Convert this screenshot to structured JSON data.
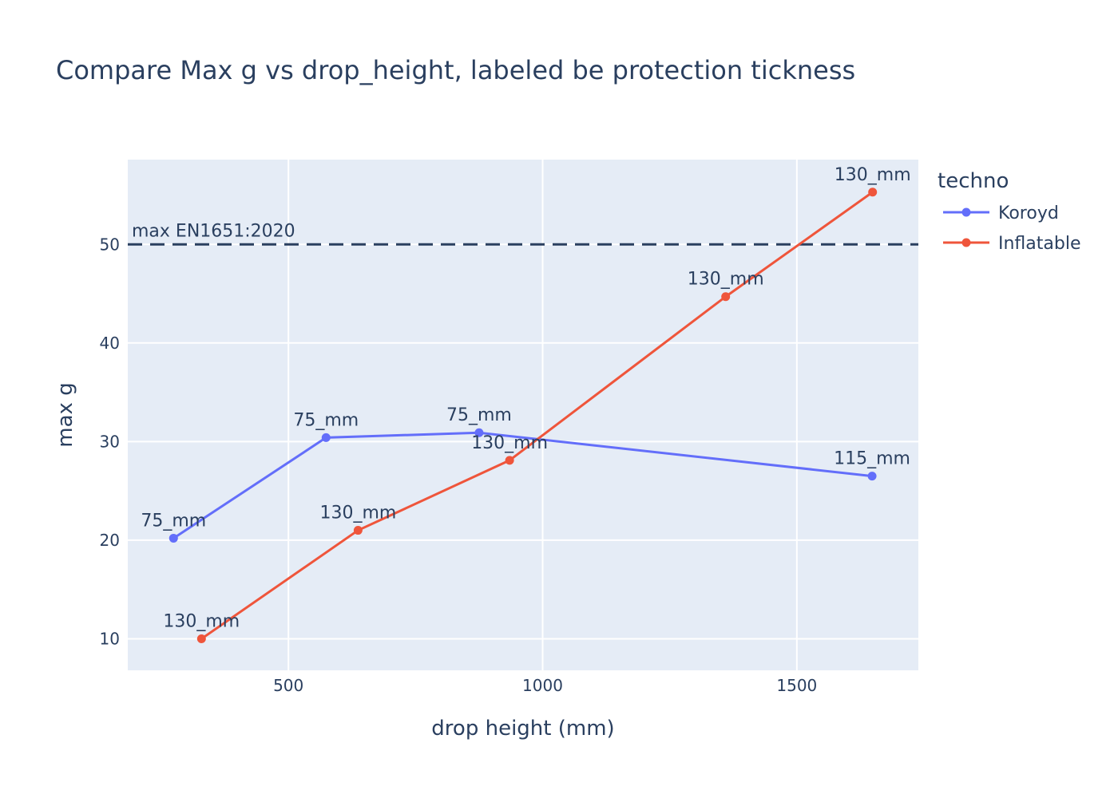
{
  "chart_data": {
    "type": "line",
    "title": "Compare Max g  vs drop_height, labeled be protection tickness",
    "xlabel": "drop height (mm)",
    "ylabel": "max g",
    "xlim": [
      184,
      1739
    ],
    "ylim": [
      6.8,
      58.6
    ],
    "xticks": [
      500,
      1000,
      1500
    ],
    "yticks": [
      10,
      20,
      30,
      40,
      50
    ],
    "grid": true,
    "legend": {
      "title": "techno",
      "position": "right"
    },
    "hline": {
      "y": 50,
      "label": "max EN1651:2020",
      "color": "#2a3f5f",
      "style": "dashed"
    },
    "series": [
      {
        "name": "Koroyd",
        "color": "#636efa",
        "x": [
          274,
          574,
          875,
          1648
        ],
        "y": [
          20.2,
          30.4,
          30.9,
          26.5
        ],
        "labels": [
          "75_mm",
          "75_mm",
          "75_mm",
          "115_mm"
        ]
      },
      {
        "name": "Inflatable",
        "color": "#ef553b",
        "x": [
          329,
          637,
          935,
          1360,
          1649
        ],
        "y": [
          10.0,
          21.0,
          28.1,
          44.7,
          55.3
        ],
        "labels": [
          "130_mm",
          "130_mm",
          "130_mm",
          "130_mm",
          "130_mm"
        ]
      }
    ]
  }
}
